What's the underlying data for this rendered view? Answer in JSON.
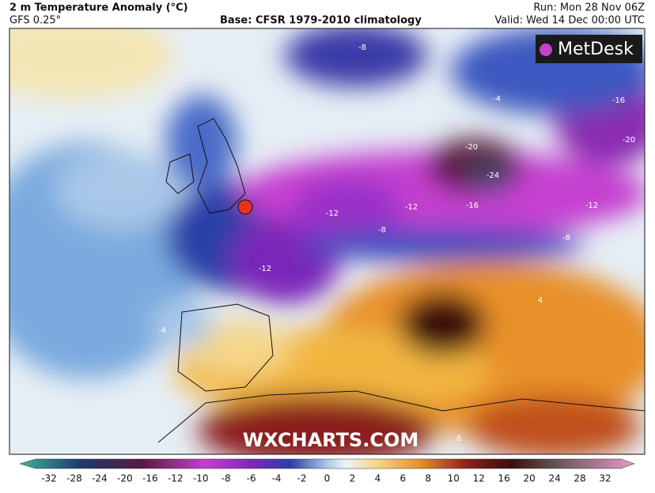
{
  "header": {
    "title": "2 m Temperature Anomaly (°C)",
    "model": "GFS 0.25°",
    "base": "Base: CFSR 1979-2010 climatology",
    "run": "Run: Mon 28 Nov 06Z",
    "valid": "Valid: Wed 14 Dec 00:00 UTC"
  },
  "logo": "MetDesk",
  "watermark": "WXCHARTS.COM",
  "colorbar": {
    "ticks": [
      -32,
      -28,
      -24,
      -20,
      -16,
      -12,
      -10,
      -8,
      -6,
      -4,
      -2,
      0,
      2,
      4,
      6,
      8,
      10,
      12,
      16,
      20,
      24,
      28,
      32
    ]
  },
  "map": {
    "contour_labels": [
      -8,
      -4,
      -16,
      -20,
      -20,
      -24,
      -12,
      -16,
      -12,
      -8,
      -12,
      -8,
      -12,
      -4,
      8,
      4
    ]
  }
}
